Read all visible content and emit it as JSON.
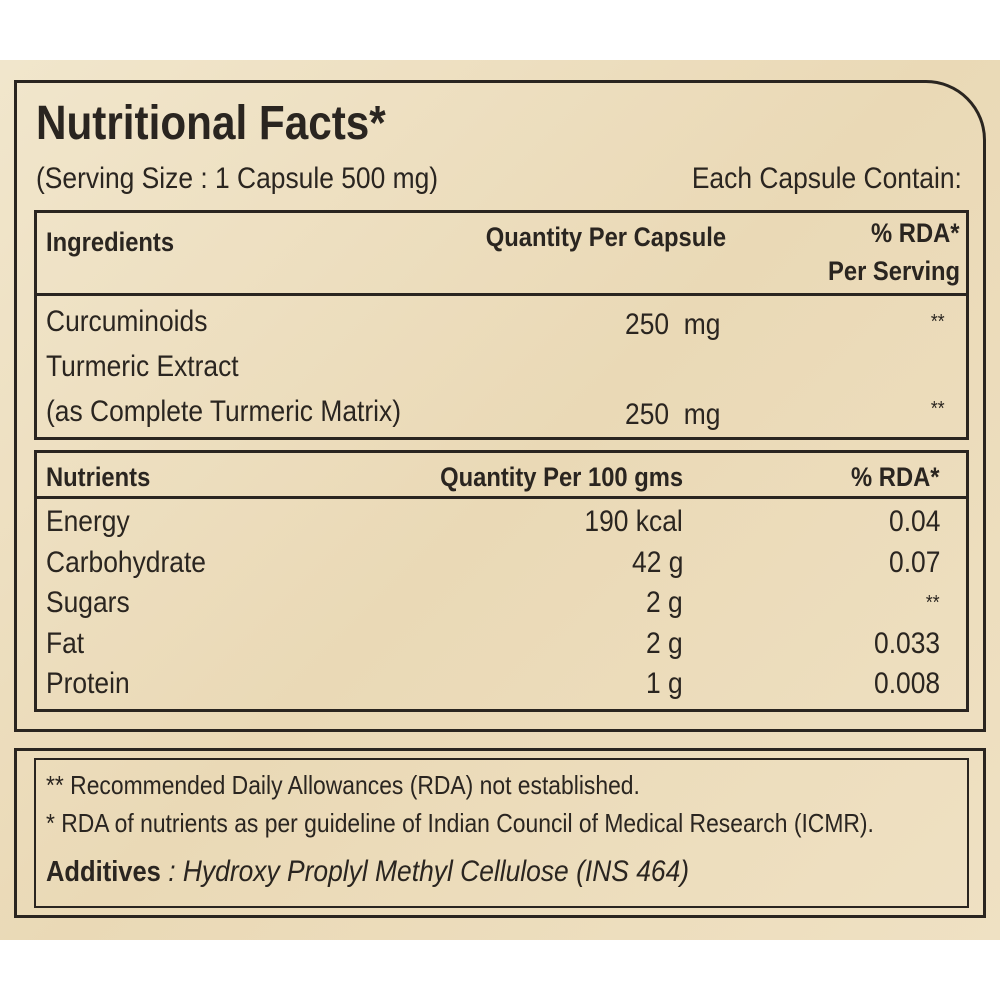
{
  "header": {
    "title": "Nutritional Facts*",
    "serving_size": "(Serving Size : 1 Capsule 500 mg)",
    "each_capsule": "Each Capsule Contain:"
  },
  "ingredients_table": {
    "columns": [
      "Ingredients",
      "Quantity Per Capsule",
      [
        "% RDA*",
        "Per Serving"
      ]
    ],
    "rows": [
      [
        [
          "Curcuminoids"
        ],
        "250  mg",
        "**"
      ],
      [
        [
          "Turmeric Extract",
          "(as Complete Turmeric Matrix)"
        ],
        "250  mg",
        "**"
      ]
    ]
  },
  "nutrients_table": {
    "columns": [
      "Nutrients",
      "Quantity Per 100 gms",
      "% RDA*"
    ],
    "rows": [
      [
        "Energy",
        "190 kcal",
        "0.04"
      ],
      [
        "Carbohydrate",
        "42 g",
        "0.07"
      ],
      [
        "Sugars",
        "2 g",
        "**"
      ],
      [
        "Fat",
        "2 g",
        "0.033"
      ],
      [
        "Protein",
        "1 g",
        "0.008"
      ]
    ]
  },
  "footer": {
    "notes": [
      "** Recommended Daily Allowances (RDA) not established.",
      "* RDA of nutrients as per guideline of Indian Council of Medical Research (ICMR)."
    ],
    "additives": {
      "label": "Additives",
      "value": " : Hydroxy Proplyl Methyl Cellulose (INS 464)"
    }
  }
}
